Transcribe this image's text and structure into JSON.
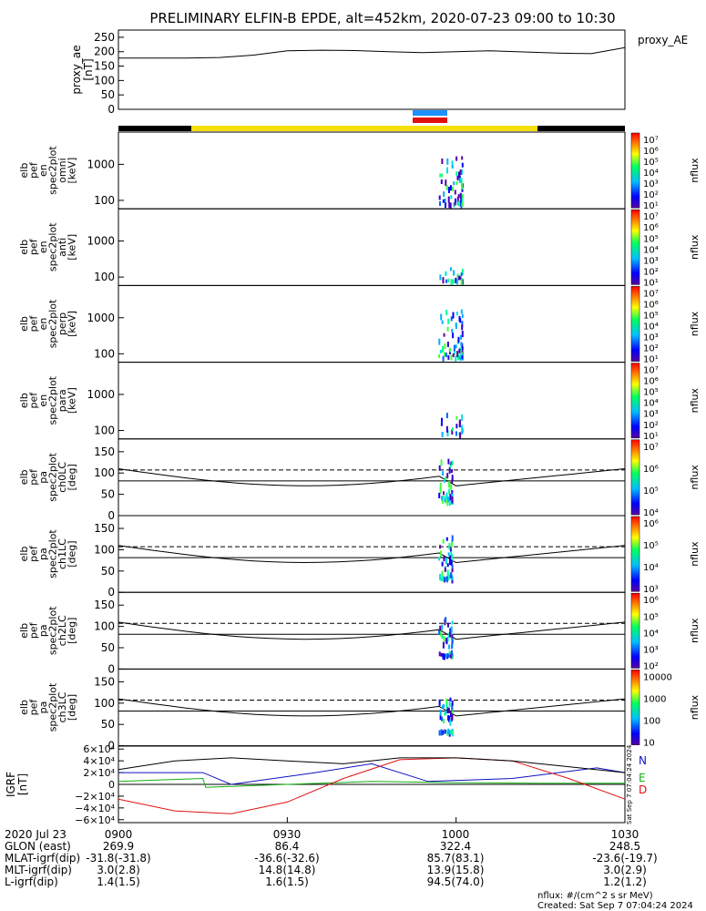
{
  "title": "PRELIMINARY ELFIN-B EPDE, alt=452km, 2020-07-23 09:00 to 10:30",
  "created": "Created: Sat Sep  7 07:04:24 2024",
  "footer_units": "nflux: #/(cm^2 s sr MeV)",
  "vertical_stamp": "Sat Sep  7 07:04:24 2024",
  "colors": {
    "sun_bar": "#f5df0a",
    "dark_bar": "#000000",
    "sci_zone_upper": "#1e90ff",
    "sci_zone_lower": "#e01010",
    "grf_n": "#1010c0",
    "grf_e": "#10b010",
    "grf_d": "#e01010"
  },
  "orbit_table": {
    "date": "2020 Jul 23",
    "time_ticks": [
      "0900",
      "0930",
      "1000",
      "1030"
    ],
    "rows": [
      {
        "label": "GLON (east)",
        "values": [
          "269.9",
          "86.4",
          "322.4",
          "248.5"
        ]
      },
      {
        "label": "MLAT-igrf(dip)",
        "values": [
          "-31.8(-31.8)",
          "-36.6(-32.6)",
          "85.7(83.1)",
          "-23.6(-19.7)"
        ]
      },
      {
        "label": "MLT-igrf(dip)",
        "values": [
          "3.0(2.8)",
          "14.8(14.8)",
          "13.9(15.8)",
          "3.0(2.9)"
        ]
      },
      {
        "label": "L-igrf(dip)",
        "values": [
          "1.4(1.5)",
          "1.6(1.5)",
          "94.5(74.0)",
          "1.2(1.2)"
        ]
      }
    ]
  },
  "chart_data": [
    {
      "type": "line",
      "panel": "proxy_ae",
      "ylabel": [
        "proxy_ae",
        "[nT]"
      ],
      "legend": "proxy_AE",
      "ylim": [
        0,
        275
      ],
      "yticks": [
        "250",
        "200",
        "150",
        "100",
        "50",
        "0"
      ],
      "ytick_values": [
        250,
        200,
        150,
        100,
        50,
        0
      ],
      "x": [
        0,
        6,
        12,
        18,
        24,
        30,
        36,
        42,
        48,
        54,
        60,
        66,
        72,
        78,
        84,
        90
      ],
      "y": [
        178,
        178,
        178,
        180,
        188,
        203,
        205,
        204,
        200,
        197,
        200,
        203,
        199,
        195,
        193,
        214
      ]
    },
    {
      "type": "heatmap",
      "panel": "en_omni",
      "ylabel": [
        "elb",
        "pef",
        "en",
        "spec2plot",
        "omni",
        "[keV]"
      ],
      "yticks": [
        "1000",
        "100"
      ],
      "colorbar": {
        "label": "nflux",
        "ticks": [
          "10⁷",
          "10⁶",
          "10⁵",
          "10⁴",
          "10³",
          "10²",
          "10¹"
        ]
      }
    },
    {
      "type": "heatmap",
      "panel": "en_anti",
      "ylabel": [
        "elb",
        "pef",
        "en",
        "spec2plot",
        "anti",
        "[keV]"
      ],
      "yticks": [
        "1000",
        "100"
      ],
      "colorbar": {
        "label": "nflux",
        "ticks": [
          "10⁷",
          "10⁶",
          "10⁵",
          "10⁴",
          "10³",
          "10²",
          "10¹"
        ]
      }
    },
    {
      "type": "heatmap",
      "panel": "en_perp",
      "ylabel": [
        "elb",
        "pef",
        "en",
        "spec2plot",
        "perp",
        "[keV]"
      ],
      "yticks": [
        "1000",
        "100"
      ],
      "colorbar": {
        "label": "nflux",
        "ticks": [
          "10⁷",
          "10⁶",
          "10⁵",
          "10⁴",
          "10³",
          "10²",
          "10¹"
        ]
      }
    },
    {
      "type": "heatmap",
      "panel": "en_para",
      "ylabel": [
        "elb",
        "pef",
        "en",
        "spec2plot",
        "para",
        "[keV]"
      ],
      "yticks": [
        "1000",
        "100"
      ],
      "colorbar": {
        "label": "nflux",
        "ticks": [
          "10⁷",
          "10⁶",
          "10⁵",
          "10⁴",
          "10³",
          "10²",
          "10¹"
        ]
      }
    },
    {
      "type": "heatmap",
      "panel": "pa_ch0",
      "ylabel": [
        "elb",
        "pef",
        "pa",
        "spec2plot",
        "ch0LC",
        "[deg]"
      ],
      "yticks": [
        "150",
        "100",
        "50",
        "0"
      ],
      "colorbar": {
        "label": "nflux",
        "ticks": [
          "10⁷",
          "10⁶",
          "10⁵",
          "10⁴"
        ]
      }
    },
    {
      "type": "heatmap",
      "panel": "pa_ch1",
      "ylabel": [
        "elb",
        "pef",
        "pa",
        "spec2plot",
        "ch1LC",
        "[deg]"
      ],
      "yticks": [
        "150",
        "100",
        "50",
        "0"
      ],
      "colorbar": {
        "label": "nflux",
        "ticks": [
          "10⁶",
          "10⁵",
          "10⁴",
          "10³"
        ]
      }
    },
    {
      "type": "heatmap",
      "panel": "pa_ch2",
      "ylabel": [
        "elb",
        "pef",
        "pa",
        "spec2plot",
        "ch2LC",
        "[deg]"
      ],
      "yticks": [
        "150",
        "100",
        "50",
        "0"
      ],
      "colorbar": {
        "label": "nflux",
        "ticks": [
          "10⁶",
          "10⁵",
          "10⁴",
          "10³",
          "10²"
        ]
      }
    },
    {
      "type": "heatmap",
      "panel": "pa_ch3",
      "ylabel": [
        "elb",
        "pef",
        "pa",
        "spec2plot",
        "ch3LC",
        "[deg]"
      ],
      "yticks": [
        "150",
        "100",
        "50",
        "0"
      ],
      "colorbar": {
        "label": "nflux",
        "ticks": [
          "10000",
          "1000",
          "100",
          "10"
        ]
      }
    },
    {
      "type": "line",
      "panel": "igrf",
      "ylabel": [
        "IGRF",
        "[nT]"
      ],
      "yticks": [
        "6×10⁴",
        "4×10⁴",
        "2×10⁴",
        "0",
        "−2×10⁴",
        "−4×10⁴",
        "−6×10⁴"
      ],
      "ytick_values": [
        60000,
        40000,
        20000,
        0,
        -20000,
        -40000,
        -60000
      ],
      "ylim": [
        -65000,
        65000
      ],
      "series": [
        {
          "name": "N",
          "color": "#1010c0",
          "x": [
            0,
            15,
            20,
            35,
            45,
            55,
            70,
            85,
            90
          ],
          "y": [
            20000,
            20000,
            0,
            20000,
            35000,
            5000,
            10000,
            28000,
            20000
          ]
        },
        {
          "name": "E",
          "color": "#10b010",
          "x": [
            0,
            15,
            15.5,
            30,
            45,
            60,
            75,
            90
          ],
          "y": [
            5000,
            10000,
            -5000,
            0,
            5000,
            3000,
            2000,
            2000
          ]
        },
        {
          "name": "D",
          "color": "#e01010",
          "x": [
            0,
            10,
            20,
            30,
            40,
            50,
            60,
            70,
            80,
            90
          ],
          "y": [
            -25000,
            -45000,
            -50000,
            -30000,
            10000,
            42000,
            45000,
            40000,
            10000,
            -25000
          ]
        },
        {
          "name": "",
          "color": "#000000",
          "x": [
            0,
            10,
            20,
            30,
            40,
            50,
            60,
            70,
            80,
            90
          ],
          "y": [
            25000,
            40000,
            45000,
            40000,
            35000,
            45000,
            45000,
            40000,
            30000,
            20000
          ]
        }
      ]
    }
  ]
}
